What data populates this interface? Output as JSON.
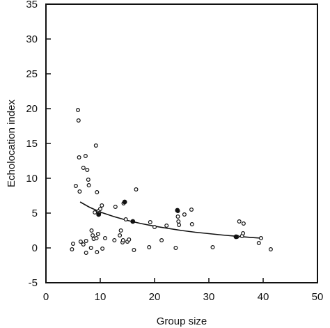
{
  "chart_data": {
    "type": "scatter",
    "title": "",
    "xlabel": "Group size",
    "ylabel": "Echolocation index",
    "xlim": [
      0,
      50
    ],
    "ylim": [
      -5,
      35
    ],
    "xticks": [
      0,
      10,
      20,
      30,
      40,
      50
    ],
    "xtick_labels": [
      "0",
      "10",
      "20",
      "30",
      "40",
      "50"
    ],
    "yticks": [
      -5,
      0,
      5,
      10,
      15,
      20,
      25,
      30,
      35
    ],
    "ytick_labels": [
      "-5",
      "0",
      "5",
      "10",
      "15",
      "20",
      "25",
      "30",
      "35"
    ],
    "grid": false,
    "colors": {
      "axis": "#111111",
      "marker": "#111111",
      "fit": "#111111"
    },
    "series": [
      {
        "marker": "open-circle",
        "points": [
          [
            4.8,
            -0.2
          ],
          [
            5.0,
            0.6
          ],
          [
            5.5,
            8.9
          ],
          [
            5.9,
            19.8
          ],
          [
            6.0,
            18.3
          ],
          [
            6.1,
            13.0
          ],
          [
            6.2,
            8.1
          ],
          [
            6.4,
            0.9
          ],
          [
            6.9,
            11.5
          ],
          [
            6.9,
            0.5
          ],
          [
            7.3,
            13.2
          ],
          [
            7.4,
            1.0
          ],
          [
            7.4,
            -0.7
          ],
          [
            7.6,
            11.2
          ],
          [
            7.8,
            9.8
          ],
          [
            7.9,
            9.0
          ],
          [
            8.3,
            0.0
          ],
          [
            8.4,
            2.5
          ],
          [
            8.6,
            1.8
          ],
          [
            8.8,
            1.3
          ],
          [
            9.0,
            5.1
          ],
          [
            9.2,
            14.7
          ],
          [
            9.3,
            1.4
          ],
          [
            9.4,
            8.0
          ],
          [
            9.4,
            -0.6
          ],
          [
            9.6,
            2.0
          ],
          [
            9.7,
            5.3
          ],
          [
            9.8,
            5.0
          ],
          [
            10.0,
            5.6
          ],
          [
            10.3,
            6.1
          ],
          [
            10.4,
            -0.1
          ],
          [
            10.9,
            1.4
          ],
          [
            12.6,
            1.1
          ],
          [
            12.8,
            5.9
          ],
          [
            13.6,
            1.8
          ],
          [
            13.8,
            2.5
          ],
          [
            14.1,
            0.8
          ],
          [
            14.2,
            1.1
          ],
          [
            14.3,
            6.4
          ],
          [
            14.7,
            4.1
          ],
          [
            15.0,
            0.9
          ],
          [
            15.3,
            1.2
          ],
          [
            16.2,
            -0.3
          ],
          [
            16.6,
            8.4
          ],
          [
            19.0,
            0.1
          ],
          [
            19.2,
            3.7
          ],
          [
            20.0,
            3.0
          ],
          [
            21.3,
            1.1
          ],
          [
            22.2,
            3.2
          ],
          [
            23.9,
            0.0
          ],
          [
            24.3,
            5.3
          ],
          [
            24.3,
            4.5
          ],
          [
            24.4,
            3.8
          ],
          [
            24.5,
            3.3
          ],
          [
            25.5,
            4.8
          ],
          [
            26.8,
            5.5
          ],
          [
            26.9,
            3.4
          ],
          [
            30.7,
            0.1
          ],
          [
            35.2,
            1.6
          ],
          [
            35.6,
            3.8
          ],
          [
            36.1,
            1.7
          ],
          [
            36.3,
            2.1
          ],
          [
            36.4,
            3.5
          ],
          [
            39.2,
            0.7
          ],
          [
            39.6,
            1.4
          ],
          [
            41.4,
            -0.2
          ]
        ]
      },
      {
        "marker": "filled-circle",
        "points": [
          [
            9.7,
            4.8
          ],
          [
            14.5,
            6.6
          ],
          [
            16.0,
            3.8
          ],
          [
            24.2,
            5.4
          ],
          [
            35.0,
            1.6
          ]
        ]
      }
    ],
    "fit": {
      "type": "line",
      "style": "smooth decreasing curve",
      "points": [
        [
          6.3,
          6.6
        ],
        [
          8.0,
          5.85
        ],
        [
          10.0,
          5.15
        ],
        [
          12.5,
          4.5
        ],
        [
          15.0,
          3.95
        ],
        [
          17.5,
          3.5
        ],
        [
          20.0,
          3.12
        ],
        [
          22.5,
          2.8
        ],
        [
          25.0,
          2.5
        ],
        [
          27.5,
          2.25
        ],
        [
          30.0,
          2.05
        ],
        [
          32.5,
          1.85
        ],
        [
          35.0,
          1.68
        ],
        [
          37.5,
          1.52
        ],
        [
          40.0,
          1.38
        ]
      ]
    }
  }
}
